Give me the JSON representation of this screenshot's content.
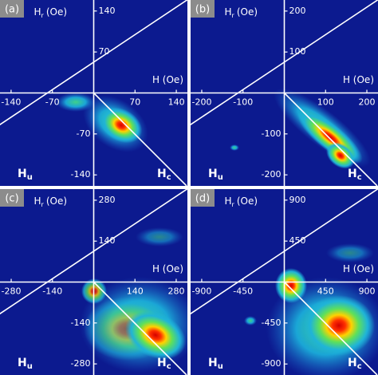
{
  "panels": [
    {
      "label": "(a)",
      "xlim": [
        -158.8,
        158.8
      ],
      "xticks": [
        -140,
        -70,
        70,
        140
      ],
      "ylim": [
        -158.8,
        158.8
      ],
      "yticks": [
        140,
        70,
        -70,
        -140
      ],
      "ylabel": [
        "H",
        "r",
        "(Oe)"
      ],
      "xlabel": "H (Oe)",
      "u_label": [
        "H",
        "u"
      ],
      "c_label": [
        "H",
        "c"
      ]
    },
    {
      "label": "(b)",
      "xlim": [
        -227,
        227
      ],
      "xticks": [
        -200,
        -100,
        100,
        200
      ],
      "ylim": [
        -227,
        227
      ],
      "yticks": [
        200,
        100,
        -100,
        -200
      ],
      "ylabel": [
        "H",
        "r",
        "(Oe)"
      ],
      "xlabel": "H (Oe)",
      "u_label": [
        "H",
        "u"
      ],
      "c_label": [
        "H",
        "c"
      ]
    },
    {
      "label": "(c)",
      "xlim": [
        -318,
        318
      ],
      "xticks": [
        -280,
        -140,
        140,
        280
      ],
      "ylim": [
        -318,
        318
      ],
      "yticks": [
        280,
        140,
        -140,
        -280
      ],
      "ylabel": [
        "H",
        "r",
        "(Oe)"
      ],
      "xlabel": "H (Oe)",
      "u_label": [
        "H",
        "u"
      ],
      "c_label": [
        "H",
        "c"
      ]
    },
    {
      "label": "(d)",
      "xlim": [
        -1021,
        1021
      ],
      "xticks": [
        -900,
        -450,
        450,
        900
      ],
      "ylim": [
        -1021,
        1021
      ],
      "yticks": [
        900,
        450,
        -450,
        -900
      ],
      "ylabel": [
        "H",
        "r",
        "(Oe)"
      ],
      "xlabel": "H (Oe)",
      "u_label": [
        "H",
        "u"
      ],
      "c_label": [
        "H",
        "c"
      ]
    }
  ]
}
